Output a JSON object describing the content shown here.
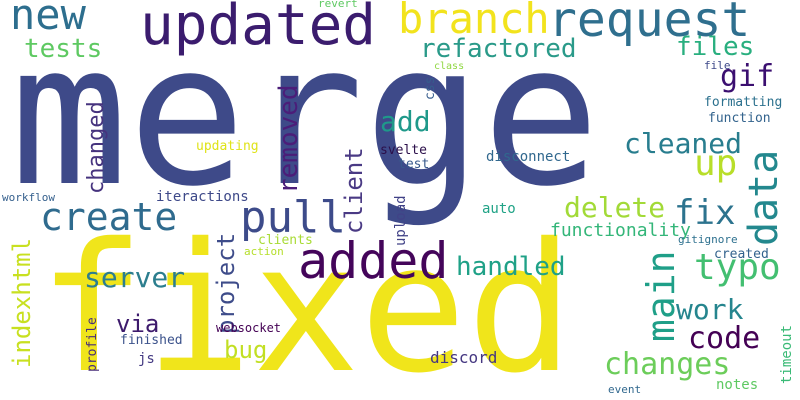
{
  "cloud": {
    "background_color": "#ffffff",
    "words": {
      "merge": {
        "text": "merge",
        "color": "#3e4a89"
      },
      "fixed": {
        "text": "fixed",
        "color": "#f0e51b"
      },
      "updated": {
        "text": "updated",
        "color": "#3b1c6e"
      },
      "added": {
        "text": "added",
        "color": "#44055a"
      },
      "request": {
        "text": "request",
        "color": "#2f6f8e"
      },
      "branch": {
        "text": "branch",
        "color": "#f2e31d"
      },
      "new": {
        "text": "new",
        "color": "#2d6e8e"
      },
      "pull": {
        "text": "pull",
        "color": "#3d4b8a"
      },
      "create": {
        "text": "create",
        "color": "#2f6b8e"
      },
      "data": {
        "text": "data",
        "color": "#23888e"
      },
      "main": {
        "text": "main",
        "color": "#1f9f88"
      },
      "typo": {
        "text": "typo",
        "color": "#43bf71"
      },
      "changes": {
        "text": "changes",
        "color": "#6ccd5a"
      },
      "refactored": {
        "text": "refactored",
        "color": "#2a9a89"
      },
      "tests": {
        "text": "tests",
        "color": "#5ec962"
      },
      "files": {
        "text": "files",
        "color": "#29af7f"
      },
      "gif": {
        "text": "gif",
        "color": "#3b0f70"
      },
      "removed": {
        "text": "removed",
        "color": "#4b1d79"
      },
      "changed": {
        "text": "changed",
        "color": "#46337e"
      },
      "add": {
        "text": "add",
        "color": "#1f998a"
      },
      "up": {
        "text": "up",
        "color": "#b8de29"
      },
      "cleaned": {
        "text": "cleaned",
        "color": "#287d8e"
      },
      "client": {
        "text": "client",
        "color": "#4a3a84"
      },
      "delete": {
        "text": "delete",
        "color": "#a2da37"
      },
      "fix": {
        "text": "fix",
        "color": "#2c738e"
      },
      "server": {
        "text": "server",
        "color": "#2c7e8e"
      },
      "project": {
        "text": "project",
        "color": "#3e4c8a"
      },
      "handled": {
        "text": "handled",
        "color": "#1fa187"
      },
      "work": {
        "text": "work",
        "color": "#25858e"
      },
      "code": {
        "text": "code",
        "color": "#440154"
      },
      "bug": {
        "text": "bug",
        "color": "#c2df23"
      },
      "via": {
        "text": "via",
        "color": "#3d1a6c"
      },
      "indexhtml": {
        "text": "indexhtml",
        "color": "#c8e020"
      },
      "functionality": {
        "text": "functionality",
        "color": "#34b679"
      },
      "discord": {
        "text": "discord",
        "color": "#453781"
      },
      "disconnect": {
        "text": "disconnect",
        "color": "#31688e"
      },
      "iteractions": {
        "text": "iteractions",
        "color": "#3e4989"
      },
      "formatting": {
        "text": "formatting",
        "color": "#2c718e"
      },
      "function": {
        "text": "function",
        "color": "#33638d"
      },
      "svelte": {
        "text": "svelte",
        "color": "#2b0f4a"
      },
      "test": {
        "text": "test",
        "color": "#38598c"
      },
      "updating": {
        "text": "updating",
        "color": "#dfe318"
      },
      "auto": {
        "text": "auto",
        "color": "#20a386"
      },
      "upload": {
        "text": "upload",
        "color": "#414287"
      },
      "clients": {
        "text": "clients",
        "color": "#a8db34"
      },
      "action": {
        "text": "action",
        "color": "#b5de2b"
      },
      "created": {
        "text": "created",
        "color": "#33628d"
      },
      "gitignore": {
        "text": "gitignore",
        "color": "#2d708e"
      },
      "websocket": {
        "text": "websocket",
        "color": "#440154"
      },
      "finished": {
        "text": "finished",
        "color": "#3b528b"
      },
      "js": {
        "text": "js",
        "color": "#443a83"
      },
      "profile": {
        "text": "profile",
        "color": "#472c7a"
      },
      "workflow": {
        "text": "workflow",
        "color": "#35608d"
      },
      "notes": {
        "text": "notes",
        "color": "#5ec962"
      },
      "event": {
        "text": "event",
        "color": "#31688e"
      },
      "timeout": {
        "text": "timeout",
        "color": "#3aba76"
      },
      "revert": {
        "text": "revert",
        "color": "#5ec962"
      },
      "file": {
        "text": "file",
        "color": "#3e4989"
      },
      "css": {
        "text": "css",
        "color": "#365c8d"
      },
      "class": {
        "text": "class",
        "color": "#90d743"
      }
    }
  }
}
